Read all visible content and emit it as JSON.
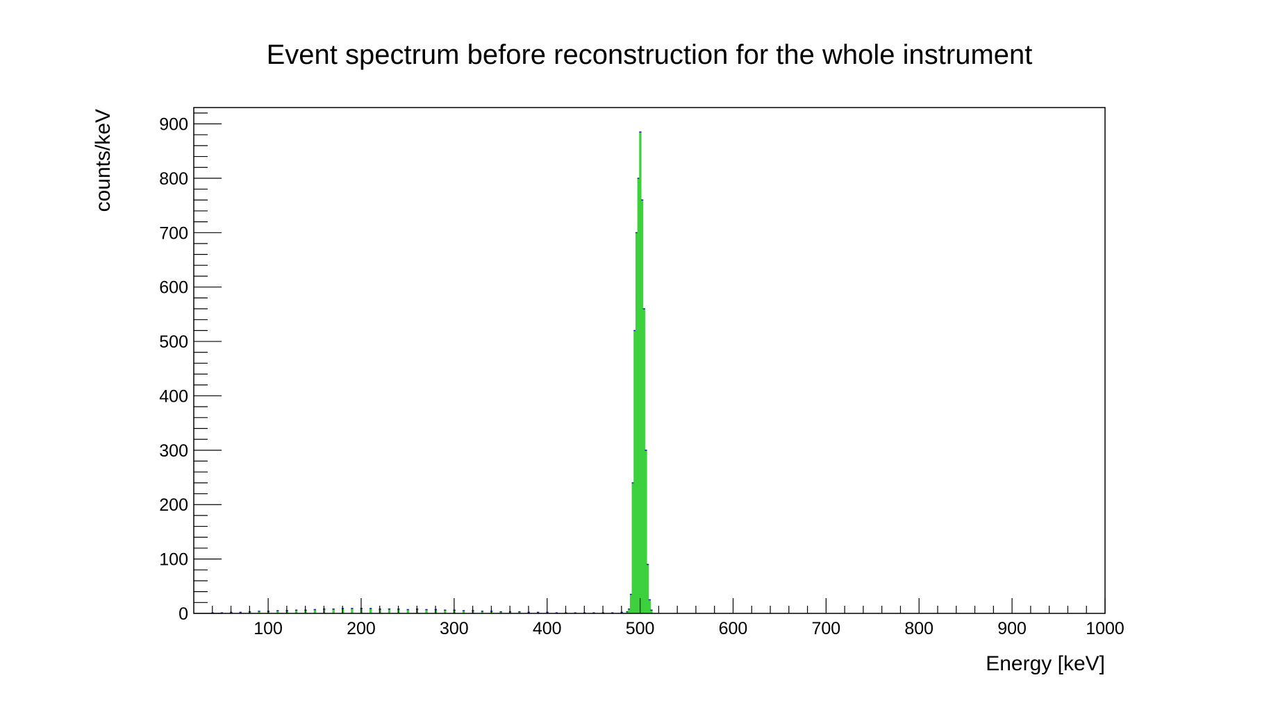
{
  "chart_data": {
    "type": "bar",
    "title": "Event spectrum before reconstruction for the whole instrument",
    "xlabel": "Energy [keV]",
    "ylabel": "counts/keV",
    "xlim": [
      20,
      1000
    ],
    "ylim": [
      0,
      930
    ],
    "xticks": [
      100,
      200,
      300,
      400,
      500,
      600,
      700,
      800,
      900,
      1000
    ],
    "xtick_labels": [
      "100",
      "200",
      "300",
      "400",
      "500",
      "600",
      "700",
      "800",
      "900",
      "1000"
    ],
    "yticks": [
      0,
      100,
      200,
      300,
      400,
      500,
      600,
      700,
      800,
      900
    ],
    "ytick_labels": [
      "0",
      "100",
      "200",
      "300",
      "400",
      "500",
      "600",
      "700",
      "800",
      "900"
    ],
    "bin_width_keV": 2,
    "grid": false,
    "legend": "none",
    "colors": {
      "fill": "#3dd13d",
      "line": "#1a1aa8",
      "frame": "#000000"
    },
    "peak": {
      "x": [
        486,
        488,
        490,
        492,
        494,
        496,
        498,
        500,
        502,
        504,
        506,
        508,
        510,
        512
      ],
      "values": [
        3,
        8,
        35,
        240,
        520,
        700,
        800,
        885,
        760,
        560,
        300,
        90,
        25,
        6
      ]
    },
    "continuum": {
      "x": [
        40,
        50,
        60,
        70,
        80,
        90,
        100,
        110,
        120,
        130,
        140,
        150,
        160,
        170,
        180,
        190,
        200,
        210,
        220,
        230,
        240,
        250,
        260,
        270,
        280,
        290,
        300,
        310,
        320,
        330,
        340,
        350,
        360,
        370,
        380,
        390,
        400,
        410,
        420,
        430,
        440,
        450,
        460,
        470,
        480
      ],
      "values": [
        1,
        1,
        2,
        2,
        3,
        4,
        4,
        5,
        5,
        6,
        6,
        7,
        8,
        8,
        9,
        9,
        9,
        9,
        8,
        8,
        8,
        7,
        8,
        7,
        7,
        6,
        6,
        5,
        5,
        4,
        4,
        3,
        3,
        3,
        2,
        2,
        2,
        1,
        1,
        1,
        1,
        1,
        1,
        1,
        2
      ]
    }
  }
}
